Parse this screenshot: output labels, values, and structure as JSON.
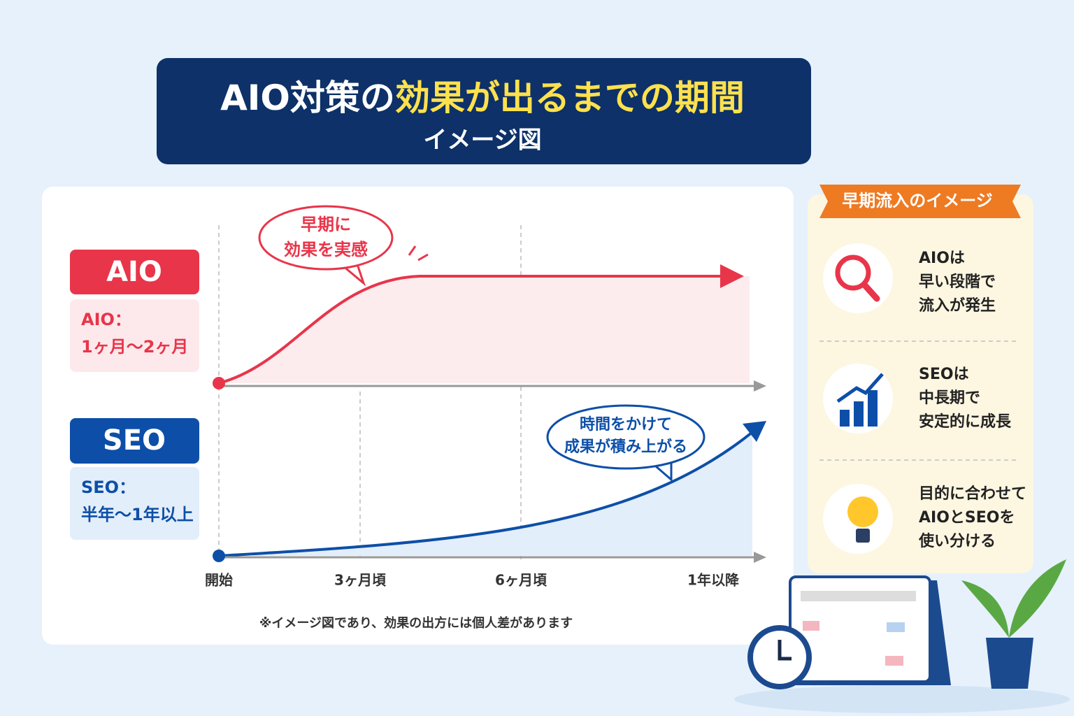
{
  "header": {
    "title_part1": "AIO対策の",
    "title_highlight": "効果が出るまでの期間",
    "subtitle": "イメージ図"
  },
  "chart": {
    "rows": [
      {
        "label": "AIO",
        "period_label": "AIO：",
        "period": "1ヶ月〜2ヶ月",
        "callout": [
          "早期に",
          "効果を実感"
        ]
      },
      {
        "label": "SEO",
        "period_label": "SEO：",
        "period": "半年〜1年以上",
        "callout": [
          "時間をかけて",
          "成果が積み上がる"
        ]
      }
    ],
    "x_labels": [
      "開始",
      "3ヶ月頃",
      "6ヶ月頃",
      "1年以降"
    ],
    "note": "※イメージ図であり、効果の出方には個人差があります"
  },
  "sidebar": {
    "title": "早期流入のイメージ",
    "items": [
      {
        "lines": [
          "AIOは",
          "早い段階で",
          "流入が発生"
        ]
      },
      {
        "lines": [
          "SEOは",
          "中長期で",
          "安定的に成長"
        ]
      },
      {
        "lines": [
          "目的に合わせて",
          "AIOとSEOを",
          "使い分ける"
        ]
      }
    ]
  }
}
